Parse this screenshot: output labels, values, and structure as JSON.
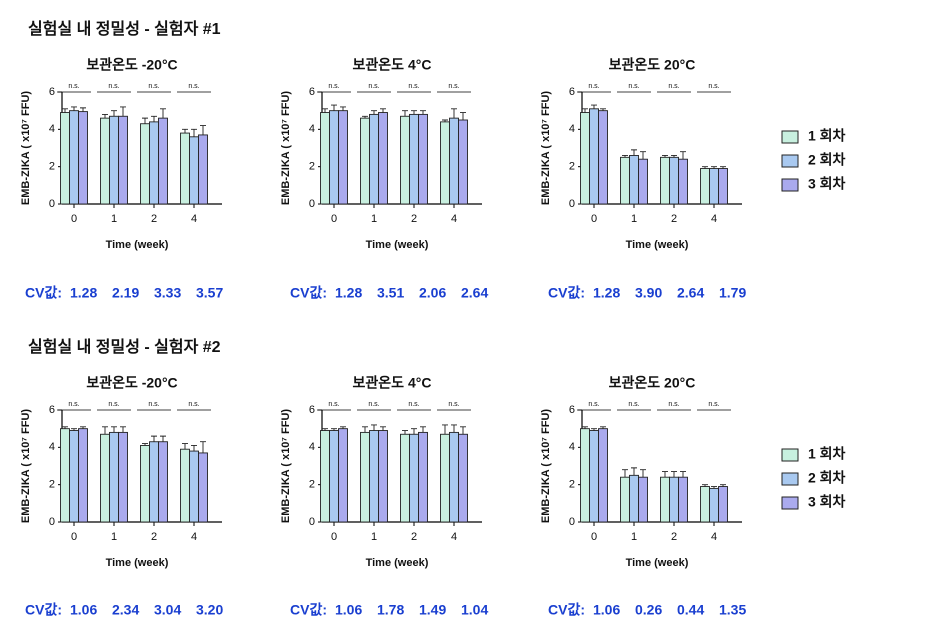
{
  "sections": [
    "실험실 내 정밀성 - 실험자 #1",
    "실험실 내 정밀성 - 실험자 #2"
  ],
  "chart_data": [
    {
      "type": "bar",
      "title": "보관온도 -20°C",
      "x_label": "Time (week)",
      "y_label": "EMB-ZIKA ( x10⁷ FFU)",
      "categories": [
        "0",
        "1",
        "2",
        "4"
      ],
      "ylim": [
        0,
        6
      ],
      "yticks": [
        0,
        2,
        4,
        6
      ],
      "annotations": [
        "n.s.",
        "n.s.",
        "n.s.",
        "n.s."
      ],
      "series": [
        {
          "color": "#c8f0df",
          "values": [
            4.9,
            4.6,
            4.3,
            3.8
          ],
          "errors": [
            0.2,
            0.2,
            0.3,
            0.2
          ]
        },
        {
          "color": "#a9c9f0",
          "values": [
            5.0,
            4.7,
            4.4,
            3.6
          ],
          "errors": [
            0.2,
            0.3,
            0.3,
            0.4
          ]
        },
        {
          "color": "#aaaaee",
          "values": [
            4.95,
            4.7,
            4.6,
            3.7
          ],
          "errors": [
            0.2,
            0.5,
            0.5,
            0.5
          ]
        }
      ],
      "cv_label": "CV값:",
      "cv_values": [
        "1.28",
        "2.19",
        "3.33",
        "3.57"
      ]
    },
    {
      "type": "bar",
      "title": "보관온도 4°C",
      "x_label": "Time (week)",
      "y_label": "EMB-ZIKA ( x10⁷ FFU)",
      "categories": [
        "0",
        "1",
        "2",
        "4"
      ],
      "ylim": [
        0,
        6
      ],
      "yticks": [
        0,
        2,
        4,
        6
      ],
      "annotations": [
        "n.s.",
        "n.s.",
        "n.s.",
        "n.s."
      ],
      "series": [
        {
          "color": "#c8f0df",
          "values": [
            4.9,
            4.6,
            4.7,
            4.4
          ],
          "errors": [
            0.2,
            0.1,
            0.3,
            0.1
          ]
        },
        {
          "color": "#a9c9f0",
          "values": [
            5.0,
            4.8,
            4.8,
            4.6
          ],
          "errors": [
            0.3,
            0.2,
            0.2,
            0.5
          ]
        },
        {
          "color": "#aaaaee",
          "values": [
            5.0,
            4.9,
            4.8,
            4.5
          ],
          "errors": [
            0.2,
            0.2,
            0.2,
            0.4
          ]
        }
      ],
      "cv_label": "CV값:",
      "cv_values": [
        "1.28",
        "3.51",
        "2.06",
        "2.64"
      ]
    },
    {
      "type": "bar",
      "title": "보관온도 20°C",
      "x_label": "Time (week)",
      "y_label": "EMB-ZIKA ( x10⁷ FFU)",
      "categories": [
        "0",
        "1",
        "2",
        "4"
      ],
      "ylim": [
        0,
        6
      ],
      "yticks": [
        0,
        2,
        4,
        6
      ],
      "annotations": [
        "n.s.",
        "n.s.",
        "n.s.",
        "n.s."
      ],
      "legend": "right",
      "series": [
        {
          "name": "1 회차",
          "color": "#c8f0df",
          "values": [
            4.9,
            2.5,
            2.5,
            1.9
          ],
          "errors": [
            0.2,
            0.1,
            0.1,
            0.1
          ]
        },
        {
          "name": "2 회차",
          "color": "#a9c9f0",
          "values": [
            5.1,
            2.6,
            2.5,
            1.9
          ],
          "errors": [
            0.2,
            0.3,
            0.1,
            0.1
          ]
        },
        {
          "name": "3 회차",
          "color": "#aaaaee",
          "values": [
            5.0,
            2.4,
            2.4,
            1.9
          ],
          "errors": [
            0.1,
            0.4,
            0.4,
            0.1
          ]
        }
      ],
      "cv_label": "CV값:",
      "cv_values": [
        "1.28",
        "3.90",
        "2.64",
        "1.79"
      ]
    },
    {
      "type": "bar",
      "title": "보관온도 -20°C",
      "x_label": "Time (week)",
      "y_label": "EMB-ZIKA ( x10⁷ FFU)",
      "categories": [
        "0",
        "1",
        "2",
        "4"
      ],
      "ylim": [
        0,
        6
      ],
      "yticks": [
        0,
        2,
        4,
        6
      ],
      "annotations": [
        "n.s.",
        "n.s.",
        "n.s.",
        "n.s."
      ],
      "series": [
        {
          "color": "#c8f0df",
          "values": [
            5.0,
            4.7,
            4.1,
            3.9
          ],
          "errors": [
            0.1,
            0.4,
            0.1,
            0.3
          ]
        },
        {
          "color": "#a9c9f0",
          "values": [
            4.9,
            4.8,
            4.3,
            3.8
          ],
          "errors": [
            0.1,
            0.3,
            0.3,
            0.3
          ]
        },
        {
          "color": "#aaaaee",
          "values": [
            5.0,
            4.8,
            4.3,
            3.7
          ],
          "errors": [
            0.1,
            0.3,
            0.3,
            0.6
          ]
        }
      ],
      "cv_label": "CV값:",
      "cv_values": [
        "1.06",
        "2.34",
        "3.04",
        "3.20"
      ]
    },
    {
      "type": "bar",
      "title": "보관온도 4°C",
      "x_label": "Time (week)",
      "y_label": "EMB-ZIKA ( x10⁷ FFU)",
      "categories": [
        "0",
        "1",
        "2",
        "4"
      ],
      "ylim": [
        0,
        6
      ],
      "yticks": [
        0,
        2,
        4,
        6
      ],
      "annotations": [
        "n.s.",
        "n.s.",
        "n.s.",
        "n.s."
      ],
      "series": [
        {
          "color": "#c8f0df",
          "values": [
            4.9,
            4.8,
            4.7,
            4.7
          ],
          "errors": [
            0.1,
            0.3,
            0.2,
            0.5
          ]
        },
        {
          "color": "#a9c9f0",
          "values": [
            4.9,
            4.9,
            4.7,
            4.8
          ],
          "errors": [
            0.1,
            0.3,
            0.3,
            0.4
          ]
        },
        {
          "color": "#aaaaee",
          "values": [
            5.0,
            4.9,
            4.8,
            4.7
          ],
          "errors": [
            0.1,
            0.2,
            0.3,
            0.4
          ]
        }
      ],
      "cv_label": "CV값:",
      "cv_values": [
        "1.06",
        "1.78",
        "1.49",
        "1.04"
      ]
    },
    {
      "type": "bar",
      "title": "보관온도 20°C",
      "x_label": "Time (week)",
      "y_label": "EMB-ZIKA ( x10⁷ FFU)",
      "categories": [
        "0",
        "1",
        "2",
        "4"
      ],
      "ylim": [
        0,
        6
      ],
      "yticks": [
        0,
        2,
        4,
        6
      ],
      "annotations": [
        "n.s.",
        "n.s.",
        "n.s.",
        "n.s."
      ],
      "legend": "right",
      "series": [
        {
          "name": "1 회차",
          "color": "#c8f0df",
          "values": [
            5.0,
            2.4,
            2.4,
            1.9
          ],
          "errors": [
            0.1,
            0.4,
            0.3,
            0.1
          ]
        },
        {
          "name": "2 회차",
          "color": "#a9c9f0",
          "values": [
            4.9,
            2.5,
            2.4,
            1.8
          ],
          "errors": [
            0.1,
            0.4,
            0.3,
            0.1
          ]
        },
        {
          "name": "3 회차",
          "color": "#aaaaee",
          "values": [
            5.0,
            2.4,
            2.4,
            1.9
          ],
          "errors": [
            0.1,
            0.4,
            0.3,
            0.1
          ]
        }
      ],
      "cv_label": "CV값:",
      "cv_values": [
        "1.06",
        "0.26",
        "0.44",
        "1.35"
      ]
    }
  ]
}
